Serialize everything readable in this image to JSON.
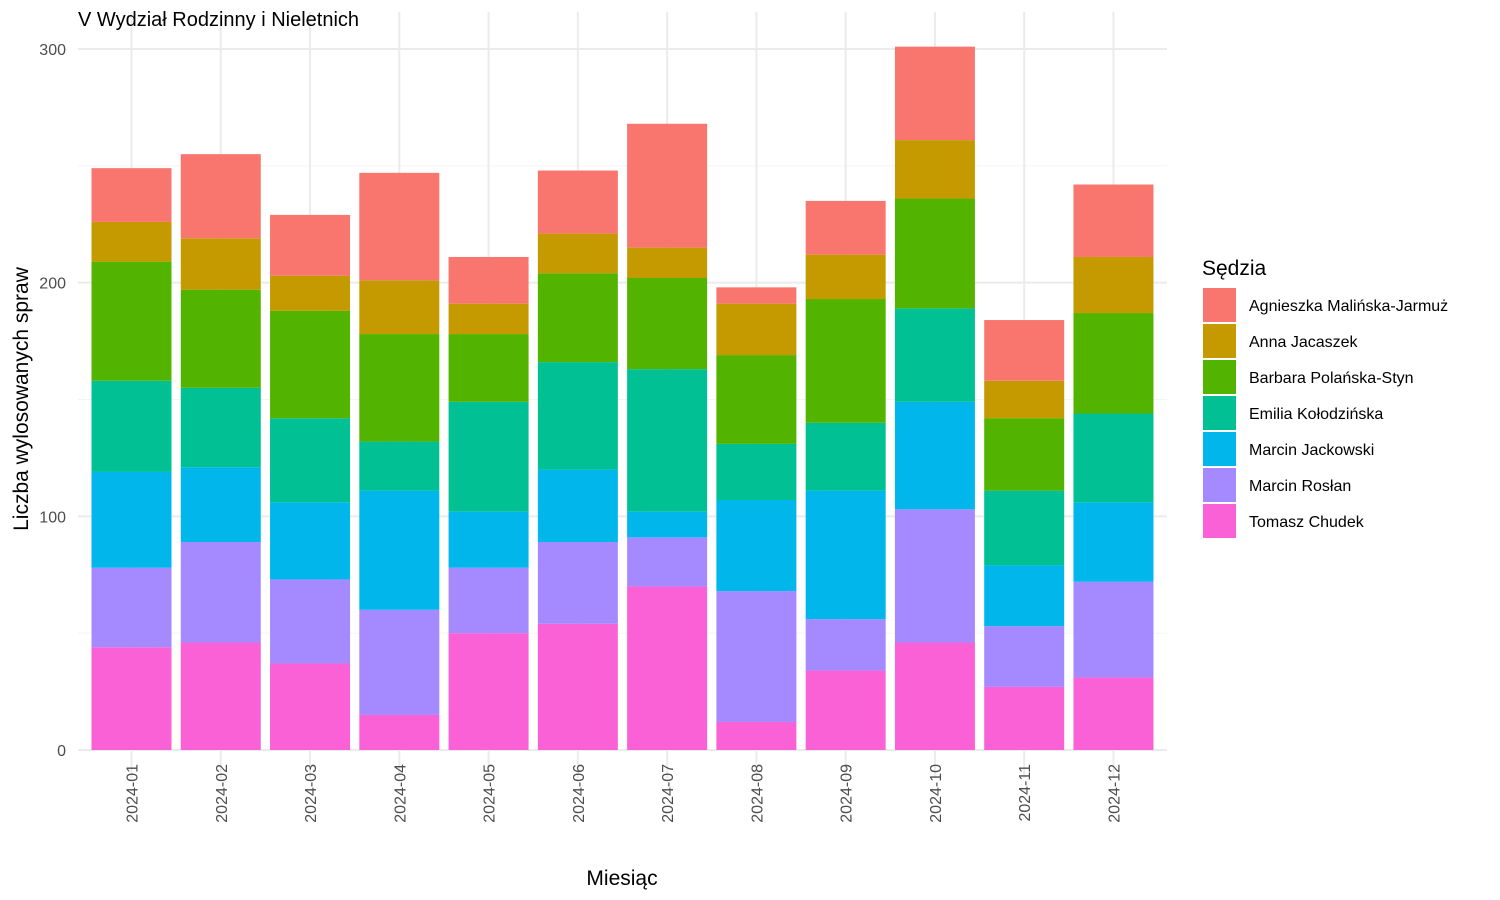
{
  "chart_data": {
    "type": "bar",
    "stacked": true,
    "title": "V Wydział Rodzinny i Nieletnich",
    "xlabel": "Miesiąc",
    "ylabel": "Liczba wylosowanych spraw",
    "ylim": [
      0,
      310
    ],
    "yticks": [
      0,
      100,
      200,
      300
    ],
    "grid": true,
    "legend": {
      "title": "Sędzia",
      "position": "right"
    },
    "categories": [
      "2024-01",
      "2024-02",
      "2024-03",
      "2024-04",
      "2024-05",
      "2024-06",
      "2024-07",
      "2024-08",
      "2024-09",
      "2024-10",
      "2024-11",
      "2024-12"
    ],
    "series": [
      {
        "name": "Agnieszka Malińska-Jarmuż",
        "color": "#F8766D",
        "values": [
          23,
          36,
          26,
          46,
          20,
          27,
          53,
          7,
          23,
          40,
          26,
          31
        ]
      },
      {
        "name": "Anna Jacaszek",
        "color": "#C49A00",
        "values": [
          17,
          22,
          15,
          23,
          13,
          17,
          13,
          22,
          19,
          25,
          16,
          24
        ]
      },
      {
        "name": "Barbara Polańska-Styn",
        "color": "#53B400",
        "values": [
          51,
          42,
          46,
          46,
          29,
          38,
          39,
          38,
          53,
          47,
          31,
          43
        ]
      },
      {
        "name": "Emilia Kołodzińska",
        "color": "#00C094",
        "values": [
          39,
          34,
          36,
          21,
          47,
          46,
          61,
          24,
          29,
          40,
          32,
          38
        ]
      },
      {
        "name": "Marcin Jackowski",
        "color": "#00B6EB",
        "values": [
          41,
          32,
          33,
          51,
          24,
          31,
          11,
          39,
          55,
          46,
          26,
          34
        ]
      },
      {
        "name": "Marcin Rosłan",
        "color": "#A58AFF",
        "values": [
          34,
          43,
          36,
          45,
          28,
          35,
          21,
          56,
          22,
          57,
          26,
          41
        ]
      },
      {
        "name": "Tomasz Chudek",
        "color": "#FB61D7",
        "values": [
          44,
          46,
          37,
          15,
          50,
          54,
          70,
          12,
          34,
          46,
          27,
          31
        ]
      }
    ]
  }
}
